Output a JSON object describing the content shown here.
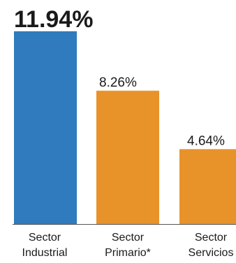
{
  "chart_data": {
    "type": "bar",
    "categories": [
      [
        "Sector",
        "Industrial"
      ],
      [
        "Sector",
        "Primario*"
      ],
      [
        "Sector",
        "Servicios"
      ]
    ],
    "values": [
      11.94,
      8.26,
      4.64
    ],
    "value_labels": [
      "11.94%",
      "8.26%",
      "4.64%"
    ],
    "colors": [
      "#2f7bbd",
      "#e8922a",
      "#e8922a"
    ],
    "title": "",
    "xlabel": "",
    "ylabel": "",
    "ylim": [
      0,
      11.94
    ],
    "grid": false,
    "legend": "none"
  }
}
